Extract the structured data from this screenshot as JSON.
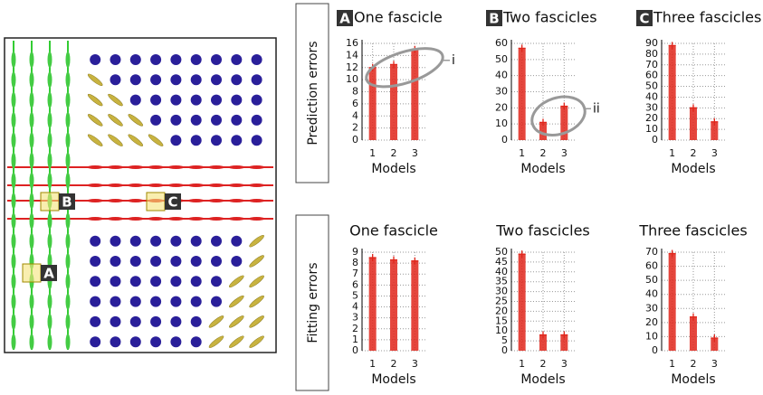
{
  "row_labels": [
    "Prediction errors",
    "Fitting errors"
  ],
  "glyph_labels": [
    "B",
    "C",
    "A"
  ],
  "chart_data": [
    {
      "type": "strip",
      "panel_label": "A",
      "title": "One fascicle",
      "x_label": "Models",
      "categories": [
        "1",
        "2",
        "3"
      ],
      "values": [
        12,
        12.5,
        15
      ],
      "color": "#e0261b",
      "ylim": [
        0,
        16
      ],
      "yticks": [
        0,
        2,
        4,
        6,
        8,
        10,
        12,
        14,
        16
      ],
      "grid": true,
      "annotation": "i"
    },
    {
      "type": "strip",
      "panel_label": "B",
      "title": "Two fascicles",
      "x_label": "Models",
      "categories": [
        "1",
        "2",
        "3"
      ],
      "values": [
        57,
        11,
        21
      ],
      "color": "#e0261b",
      "ylim": [
        0,
        60
      ],
      "yticks": [
        0,
        10,
        20,
        30,
        40,
        50,
        60
      ],
      "grid": true,
      "annotation": "ii"
    },
    {
      "type": "strip",
      "panel_label": "C",
      "title": "Three fascicles",
      "x_label": "Models",
      "categories": [
        "1",
        "2",
        "3"
      ],
      "values": [
        88,
        30,
        17
      ],
      "color": "#e0261b",
      "ylim": [
        0,
        90
      ],
      "yticks": [
        0,
        10,
        20,
        30,
        40,
        50,
        60,
        70,
        80,
        90
      ],
      "grid": true
    },
    {
      "type": "strip",
      "title": "One fascicle",
      "x_label": "Models",
      "categories": [
        "1",
        "2",
        "3"
      ],
      "values": [
        8.5,
        8.3,
        8.2
      ],
      "color": "#e0261b",
      "ylim": [
        0,
        9
      ],
      "yticks": [
        0,
        1,
        2,
        3,
        4,
        5,
        6,
        7,
        8,
        9
      ],
      "grid": true
    },
    {
      "type": "strip",
      "title": "Two fascicles",
      "x_label": "Models",
      "categories": [
        "1",
        "2",
        "3"
      ],
      "values": [
        49,
        8,
        8
      ],
      "color": "#e0261b",
      "ylim": [
        0,
        50
      ],
      "yticks": [
        0,
        5,
        10,
        15,
        20,
        25,
        30,
        35,
        40,
        45,
        50
      ],
      "grid": true
    },
    {
      "type": "strip",
      "title": "Three fascicles",
      "x_label": "Models",
      "categories": [
        "1",
        "2",
        "3"
      ],
      "values": [
        69,
        24,
        9
      ],
      "color": "#e0261b",
      "ylim": [
        0,
        70
      ],
      "yticks": [
        0,
        10,
        20,
        30,
        40,
        50,
        60,
        70
      ],
      "grid": true
    }
  ]
}
